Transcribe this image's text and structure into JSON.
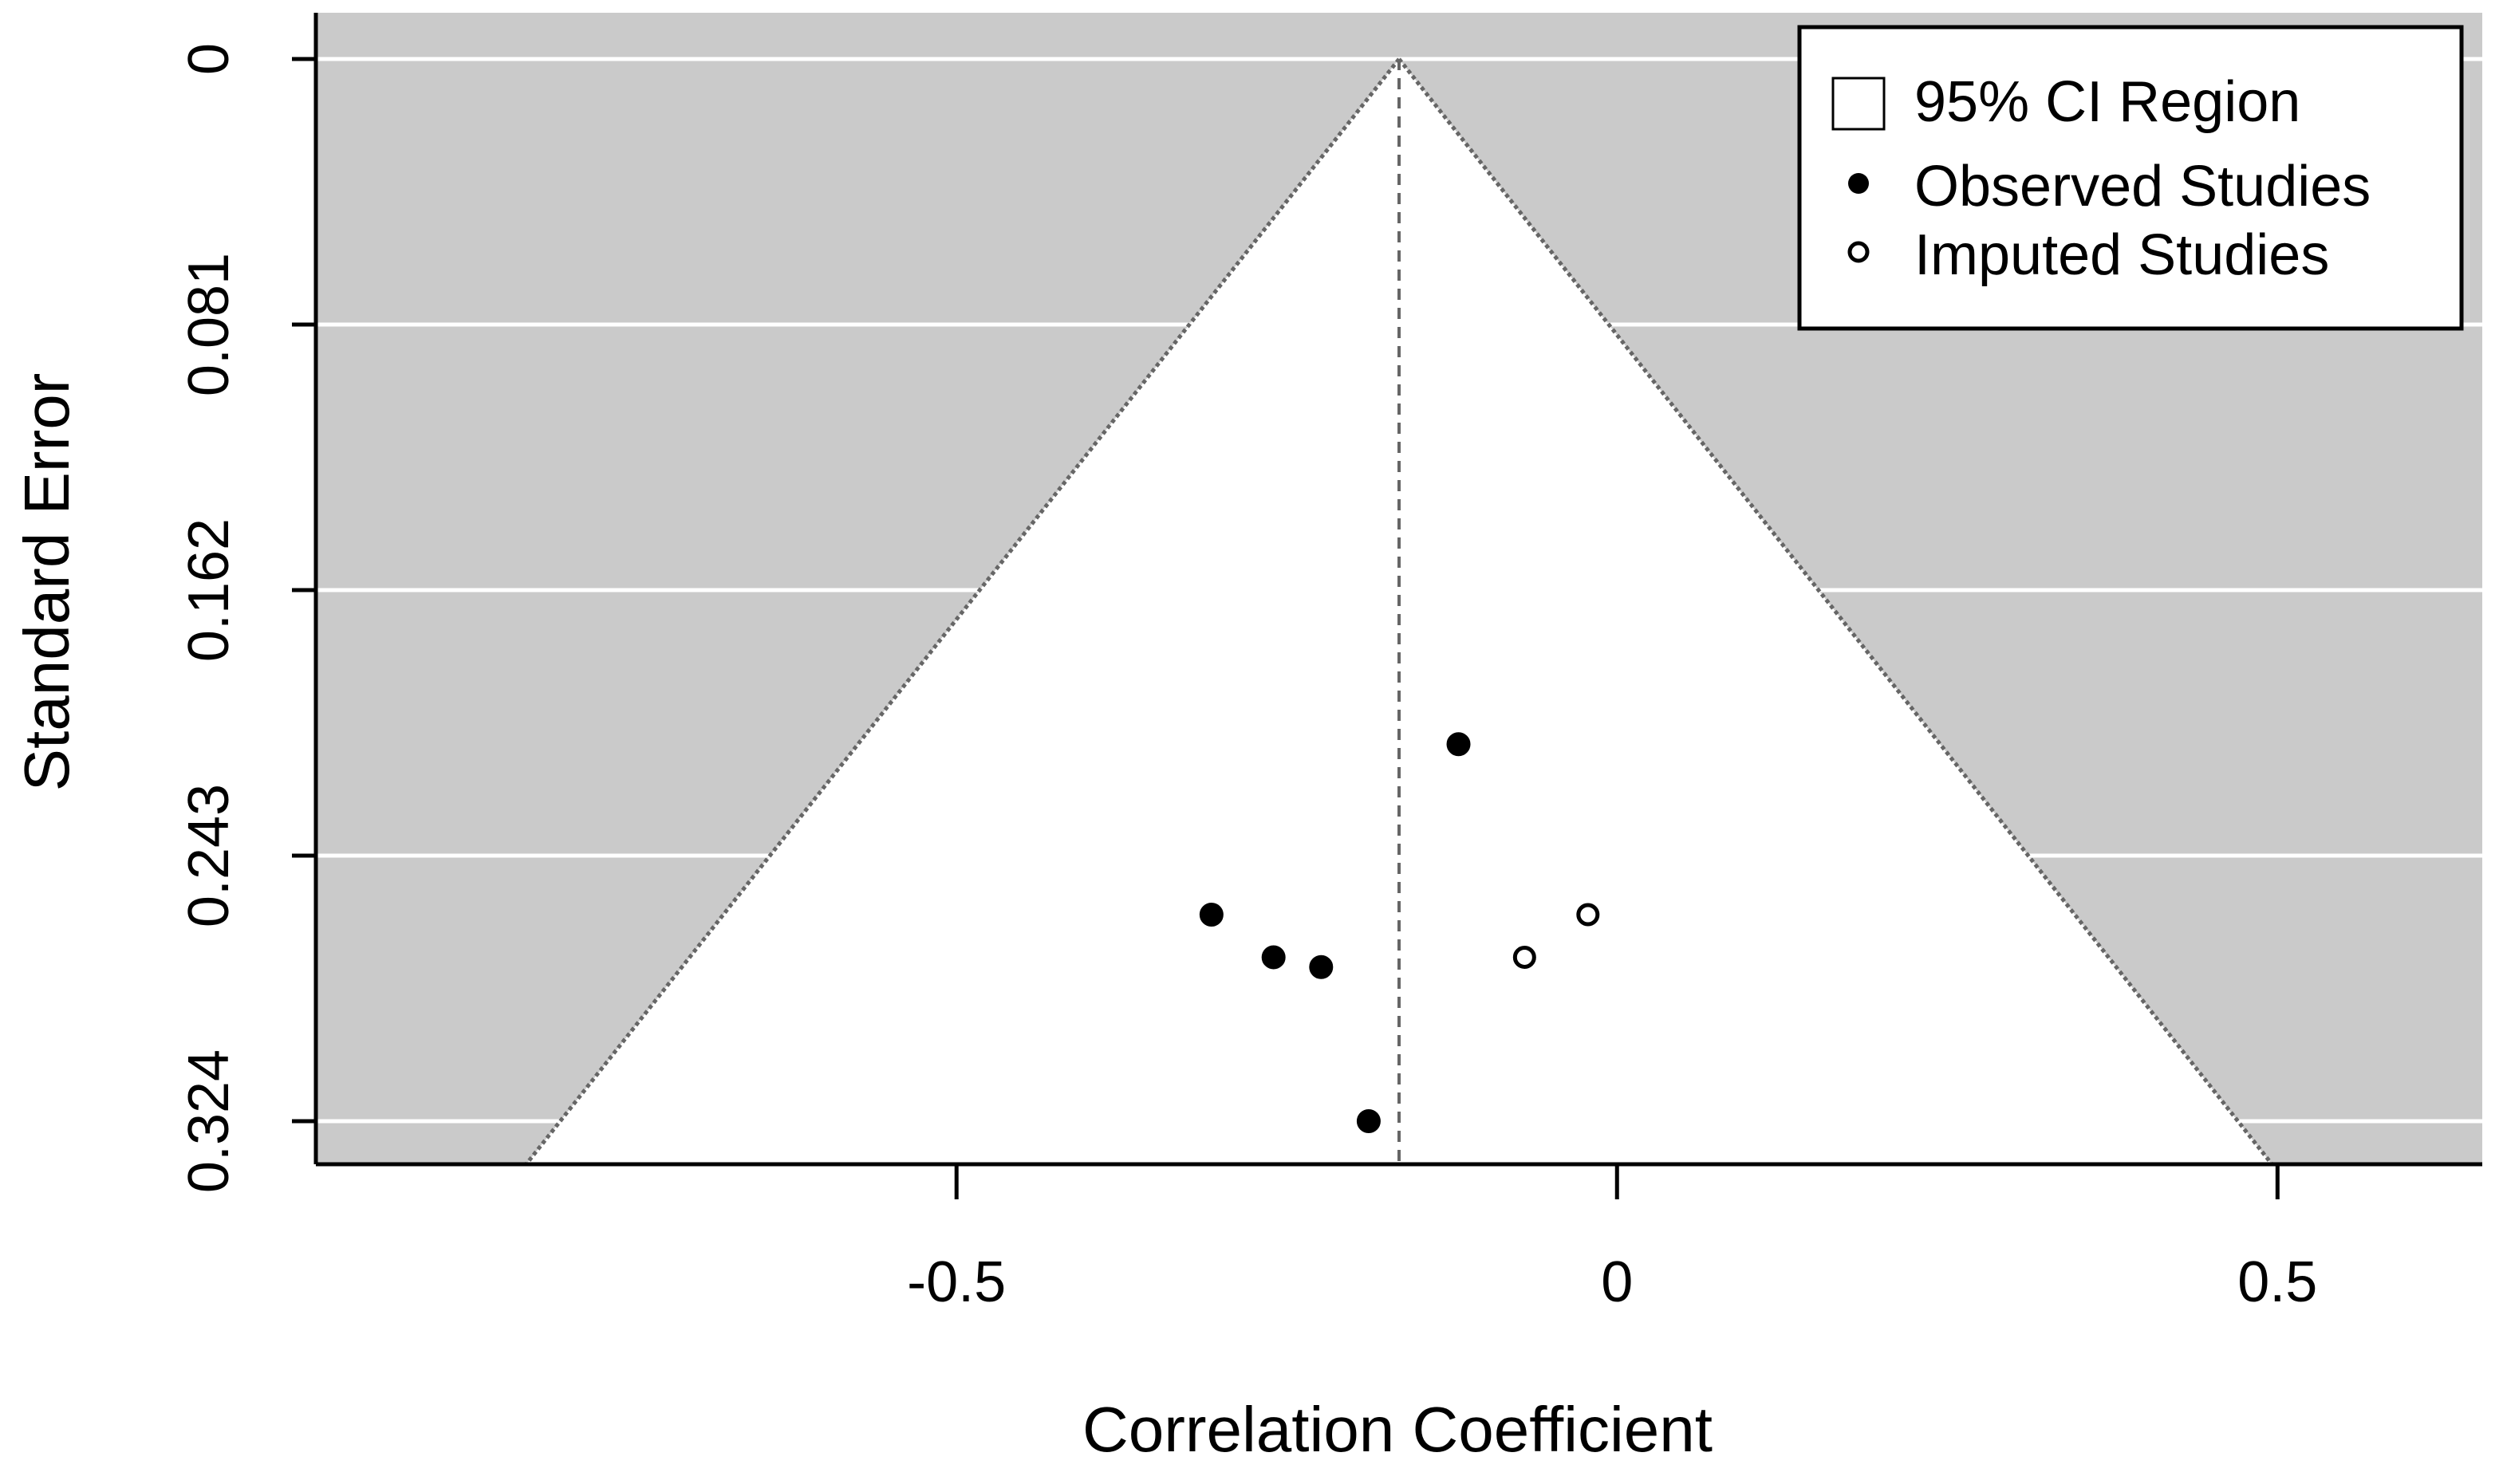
{
  "chart_data": {
    "type": "scatter",
    "subtype": "funnel-plot-trim-and-fill",
    "title": "",
    "xlabel": "Correlation Coefficient",
    "ylabel": "Standard Error",
    "xlim": [
      -0.985,
      0.655
    ],
    "ylim": [
      0.324,
      0.0
    ],
    "y_axis_inverted": true,
    "x_ticks": [
      -0.5,
      0,
      0.5
    ],
    "x_tick_labels": [
      "-0.5",
      "0",
      "0.5"
    ],
    "y_ticks": [
      0,
      0.081,
      0.162,
      0.243,
      0.324
    ],
    "y_tick_labels": [
      "0",
      "0.081",
      "0.162",
      "0.243",
      "0.324"
    ],
    "grid": true,
    "summary_estimate": -0.165,
    "ci_multiplier": 1.96,
    "series": [
      {
        "name": "Observed Studies",
        "marker": "filled-circle",
        "points": [
          {
            "x": -0.12,
            "y": 0.209
          },
          {
            "x": -0.307,
            "y": 0.261
          },
          {
            "x": -0.26,
            "y": 0.274
          },
          {
            "x": -0.224,
            "y": 0.277
          },
          {
            "x": -0.188,
            "y": 0.324
          }
        ]
      },
      {
        "name": "Imputed Studies",
        "marker": "open-circle",
        "points": [
          {
            "x": -0.022,
            "y": 0.261
          },
          {
            "x": -0.07,
            "y": 0.274
          }
        ]
      }
    ],
    "legend": {
      "position": "top-right",
      "entries": [
        {
          "label": "95% CI Region",
          "marker": "open-square"
        },
        {
          "label": "Observed Studies",
          "marker": "filled-circle"
        },
        {
          "label": "Imputed Studies",
          "marker": "open-circle"
        }
      ]
    },
    "colors": {
      "background_region": "#cacaca",
      "funnel_region": "#ffffff",
      "gridline": "#ffffff",
      "axis": "#000000",
      "funnel_line": "#666666",
      "point": "#000000"
    }
  }
}
